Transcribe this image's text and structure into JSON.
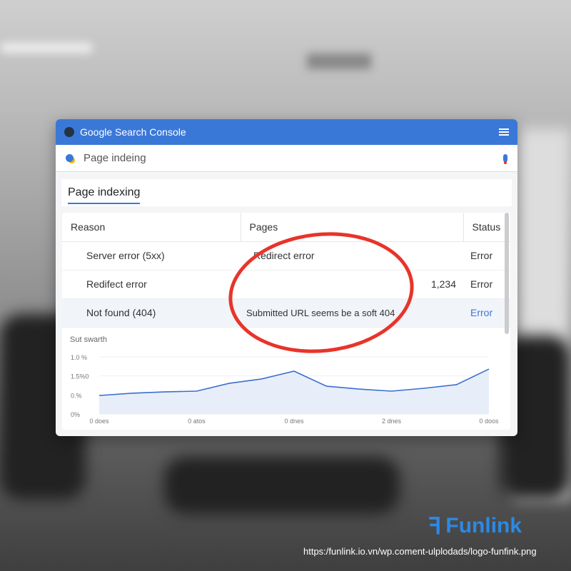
{
  "app": {
    "title": "Google Search Console"
  },
  "search": {
    "value": "Page indeing"
  },
  "tab": {
    "label": "Page indexing"
  },
  "table": {
    "headers": [
      "Reason",
      "Pages",
      "Status"
    ],
    "rows": [
      {
        "reason": "Server error (5xx)",
        "pages": "Redirect error",
        "count": "",
        "status": "Error"
      },
      {
        "reason": "Redifect error",
        "pages": "",
        "count": "1,234",
        "status": "Error"
      },
      {
        "reason": "Not found (404)",
        "pages": "Submitted URL seems be a soft 404",
        "count": "",
        "status": "Error"
      }
    ]
  },
  "chart_data": {
    "type": "area",
    "title": "Sut swarth",
    "y_tick_labels": [
      "0%",
      "0.%",
      "1.5%0",
      "1.0 %"
    ],
    "x_tick_labels": [
      "0 does",
      "0 atos",
      "0 dnes",
      "2 dnes",
      "0 doos"
    ],
    "values": [
      0.97,
      1.09,
      1.16,
      1.2,
      1.61,
      1.84,
      2.25,
      1.46,
      1.31,
      1.2,
      1.35,
      1.54,
      2.36
    ],
    "ylim": [
      0,
      3
    ],
    "grid": true,
    "line_color": "#3a6fd0",
    "fill_color": "#e8eef9"
  },
  "colors": {
    "accent": "#3a78d8",
    "annotation": "#e8342a",
    "link_status": "#3a78d8"
  },
  "watermark": {
    "brand": "Funlink",
    "url": "https:/funlink.io.vn/wp.coment-ulplodads/logo-funfink.png"
  }
}
